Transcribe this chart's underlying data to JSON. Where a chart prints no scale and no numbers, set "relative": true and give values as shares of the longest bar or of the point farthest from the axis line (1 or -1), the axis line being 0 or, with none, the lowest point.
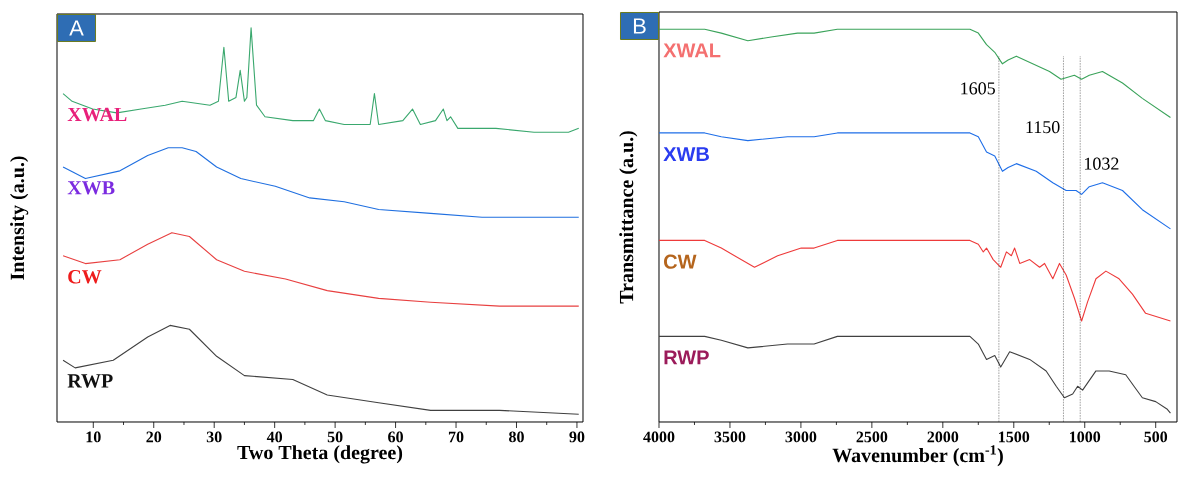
{
  "chart_data": [
    {
      "type": "line",
      "relative": true,
      "xlabel": "Two Theta (degree)",
      "ylabel": "Intensity (a.u.)",
      "xlim": [
        4,
        91
      ],
      "xticks": [
        10,
        20,
        30,
        40,
        50,
        60,
        70,
        80,
        90
      ],
      "annotations": [
        "A"
      ],
      "series": [
        {
          "name": "XWAL",
          "color": "#3aa86e",
          "x": [
            5.0,
            6.5,
            9.9,
            13.9,
            17.9,
            21.9,
            24.7,
            29.3,
            30.7,
            31.6,
            32.4,
            33.6,
            34.3,
            35.0,
            35.4,
            36.1,
            37.0,
            38.4,
            43.0,
            46.4,
            47.4,
            48.4,
            51.5,
            55.8,
            56.5,
            57.2,
            61.2,
            62.8,
            64.1,
            66.6,
            67.9,
            68.5,
            69.1,
            70.3,
            76.6,
            82.9,
            88.6,
            90.3
          ],
          "values": [
            0.83,
            0.81,
            0.79,
            0.78,
            0.79,
            0.8,
            0.81,
            0.8,
            0.81,
            0.95,
            0.81,
            0.82,
            0.89,
            0.81,
            0.82,
            1.0,
            0.8,
            0.77,
            0.76,
            0.76,
            0.79,
            0.76,
            0.75,
            0.75,
            0.83,
            0.75,
            0.76,
            0.79,
            0.75,
            0.76,
            0.79,
            0.76,
            0.77,
            0.74,
            0.74,
            0.73,
            0.73,
            0.74
          ]
        },
        {
          "name": "XWB",
          "color": "#1f6fe0",
          "x": [
            5.0,
            8.7,
            14.4,
            19.0,
            22.4,
            24.7,
            27.0,
            30.4,
            34.4,
            40.1,
            45.8,
            51.5,
            57.2,
            65.8,
            74.3,
            82.9,
            90.3
          ],
          "values": [
            0.64,
            0.61,
            0.63,
            0.67,
            0.69,
            0.69,
            0.68,
            0.64,
            0.61,
            0.59,
            0.56,
            0.55,
            0.53,
            0.52,
            0.51,
            0.51,
            0.51
          ]
        },
        {
          "name": "CW",
          "color": "#e84040",
          "x": [
            5.0,
            8.7,
            14.4,
            19.0,
            23.0,
            25.9,
            30.4,
            35.0,
            41.8,
            48.7,
            57.2,
            65.8,
            77.2,
            90.3
          ],
          "values": [
            0.41,
            0.39,
            0.4,
            0.44,
            0.47,
            0.46,
            0.4,
            0.37,
            0.35,
            0.32,
            0.3,
            0.29,
            0.28,
            0.28
          ]
        },
        {
          "name": "RWP",
          "color": "#404040",
          "x": [
            5.0,
            7.0,
            13.3,
            19.0,
            22.7,
            25.9,
            30.4,
            35.0,
            43.0,
            48.7,
            57.2,
            65.8,
            77.2,
            90.3
          ],
          "values": [
            0.14,
            0.12,
            0.14,
            0.2,
            0.23,
            0.22,
            0.15,
            0.1,
            0.09,
            0.05,
            0.03,
            0.01,
            0.01,
            0.0
          ]
        }
      ]
    },
    {
      "type": "line",
      "relative": true,
      "xlabel": "Wavenumber (cm$^{-1}$)",
      "ylabel": "Transmittance (a.u.)",
      "xlim": [
        4000,
        350
      ],
      "xticks": [
        4000,
        3500,
        3000,
        2500,
        2000,
        1500,
        1000,
        500
      ],
      "annotations": [
        "B"
      ],
      "ref_lines": [
        {
          "axis": "x",
          "value": 1605,
          "label": "1605",
          "line_style": "dotted"
        },
        {
          "axis": "x",
          "value": 1150,
          "label": "1150",
          "line_style": "dotted"
        },
        {
          "axis": "x",
          "value": 1032,
          "label": "1032",
          "line_style": "dotted"
        }
      ],
      "series": [
        {
          "name": "XWAL",
          "color": "#3aa35a",
          "x": [
            4000,
            3678,
            3561,
            3374,
            3210,
            3024,
            2907,
            2743,
            2393,
            1809,
            1750,
            1692,
            1634,
            1580,
            1540,
            1482,
            1365,
            1248,
            1167,
            1073,
            1022,
            968,
            875,
            734,
            594,
            396
          ],
          "values": [
            1.0,
            1.0,
            0.99,
            0.97,
            0.98,
            0.99,
            0.99,
            1.0,
            1.0,
            1.0,
            0.99,
            0.96,
            0.94,
            0.91,
            0.92,
            0.93,
            0.91,
            0.89,
            0.87,
            0.88,
            0.87,
            0.88,
            0.89,
            0.86,
            0.82,
            0.77
          ]
        },
        {
          "name": "XWB",
          "color": "#1e6ee8",
          "x": [
            4000,
            3678,
            3561,
            3374,
            3094,
            2907,
            2743,
            1809,
            1750,
            1692,
            1634,
            1580,
            1540,
            1482,
            1342,
            1225,
            1131,
            1061,
            1022,
            968,
            875,
            734,
            594,
            396
          ],
          "values": [
            0.73,
            0.73,
            0.72,
            0.71,
            0.72,
            0.72,
            0.73,
            0.73,
            0.72,
            0.68,
            0.67,
            0.63,
            0.64,
            0.65,
            0.63,
            0.6,
            0.58,
            0.58,
            0.57,
            0.59,
            0.6,
            0.58,
            0.53,
            0.48
          ]
        },
        {
          "name": "CW",
          "color": "#ee3a3a",
          "x": [
            4000,
            3678,
            3561,
            3327,
            3164,
            2998,
            2907,
            2743,
            1809,
            1750,
            1715,
            1692,
            1645,
            1592,
            1552,
            1517,
            1494,
            1458,
            1388,
            1318,
            1283,
            1225,
            1178,
            1131,
            1073,
            1022,
            980,
            921,
            851,
            758,
            664,
            571,
            396
          ],
          "values": [
            0.45,
            0.45,
            0.43,
            0.38,
            0.41,
            0.43,
            0.43,
            0.45,
            0.45,
            0.44,
            0.42,
            0.43,
            0.4,
            0.38,
            0.42,
            0.41,
            0.43,
            0.39,
            0.4,
            0.38,
            0.39,
            0.35,
            0.39,
            0.36,
            0.3,
            0.24,
            0.29,
            0.35,
            0.37,
            0.35,
            0.31,
            0.26,
            0.24
          ]
        },
        {
          "name": "RWP",
          "color": "#404040",
          "x": [
            4000,
            3678,
            3561,
            3374,
            3094,
            2907,
            2743,
            1809,
            1750,
            1692,
            1634,
            1592,
            1529,
            1388,
            1272,
            1201,
            1143,
            1085,
            1050,
            1015,
            921,
            828,
            711,
            653,
            594,
            500,
            418,
            396
          ],
          "values": [
            0.2,
            0.2,
            0.19,
            0.17,
            0.18,
            0.18,
            0.2,
            0.2,
            0.18,
            0.14,
            0.15,
            0.12,
            0.16,
            0.14,
            0.11,
            0.07,
            0.04,
            0.05,
            0.07,
            0.06,
            0.11,
            0.11,
            0.1,
            0.07,
            0.04,
            0.03,
            0.01,
            0.0
          ]
        }
      ]
    }
  ]
}
